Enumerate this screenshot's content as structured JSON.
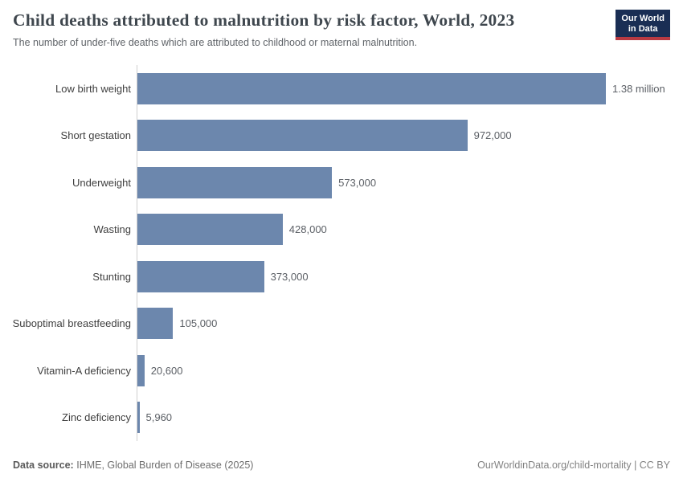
{
  "header": {
    "title": "Child deaths attributed to malnutrition by risk factor, World, 2023",
    "subtitle": "The number of under-five deaths which are attributed to childhood or maternal malnutrition.",
    "logo_line1": "Our World",
    "logo_line2": "in Data",
    "logo_bg_color": "#1a2e54",
    "logo_stripe_color": "#b93a42"
  },
  "chart_data": {
    "type": "bar",
    "orientation": "horizontal",
    "title": "Child deaths attributed to malnutrition by risk factor, World, 2023",
    "xlabel": "",
    "ylabel": "",
    "xlim": [
      0,
      1380000
    ],
    "grid": false,
    "legend": "none",
    "bar_color": "#6c87ad",
    "axis_color": "#cfcfcf",
    "categories": [
      "Low birth weight",
      "Short gestation",
      "Underweight",
      "Wasting",
      "Stunting",
      "Suboptimal breastfeeding",
      "Vitamin-A deficiency",
      "Zinc deficiency"
    ],
    "values": [
      1380000,
      972000,
      573000,
      428000,
      373000,
      105000,
      20600,
      5960
    ],
    "value_labels": [
      "1.38 million",
      "972,000",
      "573,000",
      "428,000",
      "373,000",
      "105,000",
      "20,600",
      "5,960"
    ]
  },
  "footer": {
    "source_label": "Data source:",
    "source_value": "IHME, Global Burden of Disease (2025)",
    "credit": "OurWorldinData.org/child-mortality | CC BY"
  }
}
